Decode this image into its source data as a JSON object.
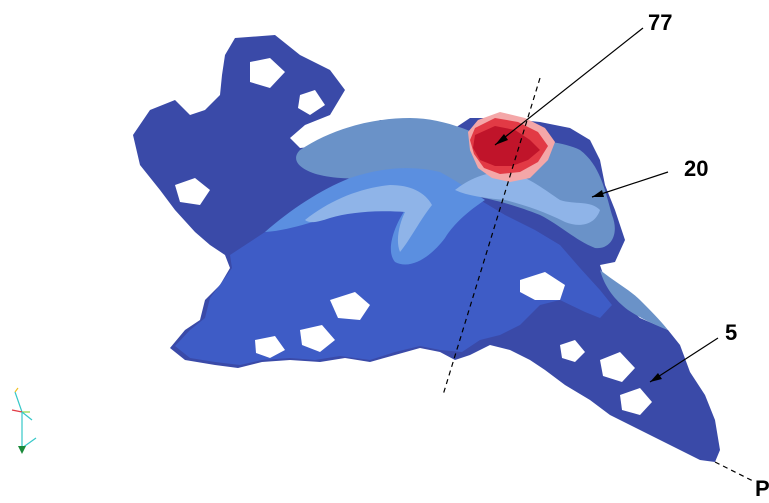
{
  "labels": {
    "top": "77",
    "middle": "20",
    "bottom": "5",
    "corner": "P"
  },
  "colors": {
    "dark_blue": "#3a4aa8",
    "mid_blue": "#3e5cc6",
    "light_blue": "#5b8fe0",
    "steel_blue": "#6a92c8",
    "pale_blue": "#8fb4e8",
    "dark_red": "#c0142a",
    "red": "#e23a45",
    "pink": "#f4a7a8"
  },
  "icons": {
    "axes": "axes-triad-icon"
  }
}
